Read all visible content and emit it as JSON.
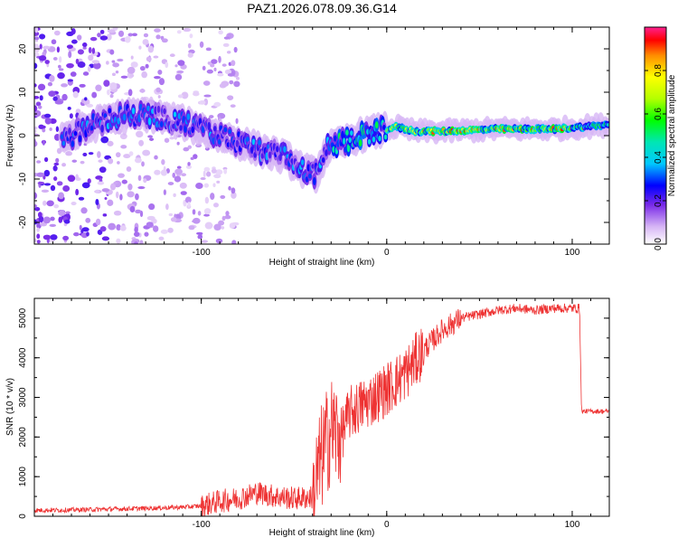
{
  "title": "PAZ1.2026.078.09.36.G14",
  "chart_data": [
    {
      "type": "heatmap",
      "xlabel": "Height of straight line (km)",
      "ylabel": "Frequency (Hz)",
      "xlim": [
        -190,
        120
      ],
      "ylim": [
        -25,
        25
      ],
      "xticks": [
        -100,
        0,
        100
      ],
      "yticks": [
        -20,
        -10,
        0,
        10,
        20
      ],
      "colorbar": {
        "label": "Normalized spectral amplitude",
        "range": [
          0,
          1
        ],
        "ticks": [
          0.0,
          0.2,
          0.4,
          0.6,
          0.8
        ]
      },
      "ridge": {
        "description_points_x": [
          -170,
          -150,
          -130,
          -110,
          -90,
          -70,
          -55,
          -45,
          -38,
          -32,
          -25,
          -15,
          -5,
          5,
          15,
          30,
          60,
          90,
          120
        ],
        "description_points_y": [
          0,
          4,
          5,
          3,
          0,
          -3,
          -5,
          -8,
          -9,
          -3,
          -2,
          0,
          1,
          2,
          1,
          1,
          1.5,
          1.5,
          2.5
        ],
        "peak_amplitude_x_range": [
          20,
          100
        ]
      }
    },
    {
      "type": "line",
      "xlabel": "Height of straight line (km)",
      "ylabel": "SNR (10 * v/v)",
      "xlim": [
        -190,
        120
      ],
      "ylim": [
        0,
        5500
      ],
      "xticks": [
        -100,
        0,
        100
      ],
      "yticks": [
        0,
        1000,
        2000,
        3000,
        4000,
        5000
      ],
      "color": "#ee3333",
      "series": [
        {
          "name": "SNR",
          "x": [
            -190,
            -170,
            -150,
            -130,
            -110,
            -100,
            -90,
            -80,
            -70,
            -60,
            -50,
            -40,
            -35,
            -30,
            -25,
            -20,
            -10,
            0,
            10,
            20,
            30,
            40,
            50,
            60,
            70,
            80,
            90,
            100,
            104,
            105,
            110,
            120
          ],
          "y": [
            150,
            160,
            180,
            200,
            230,
            260,
            380,
            450,
            600,
            500,
            450,
            480,
            1500,
            2200,
            2000,
            2600,
            2900,
            3200,
            3600,
            4200,
            4700,
            5000,
            5100,
            5200,
            5250,
            5200,
            5250,
            5250,
            5250,
            2650,
            2650,
            2650
          ]
        }
      ]
    }
  ]
}
